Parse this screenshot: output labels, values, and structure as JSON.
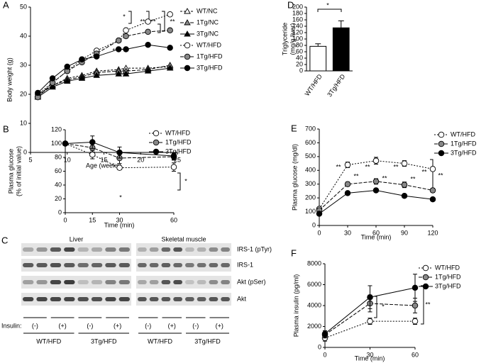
{
  "chart_data": [
    {
      "panel": "A",
      "type": "line",
      "xlabel": "Age (weeks)",
      "ylabel": [
        "Body weight (g)"
      ],
      "x": [
        6,
        8,
        10,
        12,
        14,
        17,
        18,
        21,
        24
      ],
      "xlim": [
        5,
        25
      ],
      "xticks": [
        5,
        10,
        15,
        20,
        25
      ],
      "ylim": [
        0,
        50
      ],
      "yticks": [
        0,
        10,
        20,
        30,
        40,
        50
      ],
      "series": [
        {
          "name": "WT/NC",
          "color": "#ffffff",
          "marker": "triangle",
          "dash": "3,2",
          "values": [
            20,
            23,
            25.5,
            26.5,
            28,
            28.5,
            29,
            29,
            29.5
          ]
        },
        {
          "name": "1Tg/NC",
          "color": "#888888",
          "marker": "triangle",
          "dash": "5,2",
          "values": [
            19.5,
            23,
            25,
            26,
            27.5,
            28,
            28,
            28.5,
            30
          ]
        },
        {
          "name": "3Tg/NC",
          "color": "#000000",
          "marker": "triangle",
          "dash": "",
          "values": [
            19,
            22.5,
            24.5,
            25.5,
            26.5,
            27,
            27,
            28,
            29
          ]
        },
        {
          "name": "WT/HFD",
          "color": "#ffffff",
          "marker": "circle",
          "dash": "2,2",
          "values": [
            20,
            24,
            28,
            32,
            35,
            38.5,
            42,
            45,
            47.5
          ]
        },
        {
          "name": "1Tg/HFD",
          "color": "#888888",
          "marker": "circle",
          "dash": "5,2",
          "values": [
            19,
            24,
            28,
            31,
            34,
            38.5,
            40,
            41.5,
            42
          ]
        },
        {
          "name": "3Tg/HFD",
          "color": "#000000",
          "marker": "circle",
          "dash": "",
          "values": [
            20.5,
            25.5,
            29.5,
            32,
            33,
            35.5,
            35.5,
            37,
            36
          ]
        }
      ],
      "annotations": [
        "*",
        "**",
        "**",
        "**",
        "**"
      ]
    },
    {
      "panel": "B",
      "type": "line",
      "xlabel": "Time (min)",
      "ylabel": [
        "Plasma glucose",
        "(% of initial value)"
      ],
      "x": [
        0,
        15,
        30,
        60
      ],
      "xlim": [
        0,
        60
      ],
      "xticks": [
        0,
        15,
        30,
        60
      ],
      "ylim": [
        0,
        120
      ],
      "yticks": [
        0,
        20,
        40,
        60,
        80,
        100,
        120
      ],
      "series": [
        {
          "name": "WT/HFD",
          "color": "#ffffff",
          "marker": "circle",
          "dash": "2,2",
          "values": [
            100,
            84,
            65,
            66
          ],
          "errors": [
            0,
            6,
            3,
            6
          ]
        },
        {
          "name": "1Tg/HFD",
          "color": "#888888",
          "marker": "circle",
          "dash": "5,2",
          "values": [
            100,
            94,
            79,
            81
          ],
          "errors": [
            0,
            6,
            8,
            5
          ]
        },
        {
          "name": "3Tg/HFD",
          "color": "#000000",
          "marker": "circle",
          "dash": "",
          "values": [
            100,
            102,
            87,
            82
          ],
          "errors": [
            0,
            9,
            8,
            5
          ]
        }
      ],
      "annotations": [
        "*",
        "*"
      ]
    },
    {
      "panel": "D",
      "type": "bar",
      "ylabel": [
        "Triglyceride",
        "(mg/g liver)"
      ],
      "categories": [
        "WT/HFD",
        "3Tg/HFD"
      ],
      "values": [
        77,
        135
      ],
      "errors": [
        8,
        22
      ],
      "colors": [
        "#ffffff",
        "#000000"
      ],
      "ylim": [
        0,
        200
      ],
      "yticks": [
        0,
        20,
        40,
        60,
        80,
        100,
        120,
        140,
        160,
        180,
        200
      ],
      "annotations": [
        "*"
      ]
    },
    {
      "panel": "E",
      "type": "line",
      "xlabel": "Time (min)",
      "ylabel": [
        "Plasma glucose (mg/dl)"
      ],
      "x": [
        0,
        30,
        60,
        90,
        120
      ],
      "xlim": [
        0,
        120
      ],
      "xticks": [
        0,
        30,
        60,
        90,
        120
      ],
      "ylim": [
        0,
        700
      ],
      "yticks": [
        0,
        100,
        200,
        300,
        400,
        500,
        600,
        700
      ],
      "series": [
        {
          "name": "WT/HFD",
          "color": "#ffffff",
          "marker": "circle",
          "dash": "2,2",
          "values": [
            120,
            440,
            470,
            450,
            410
          ],
          "errors": [
            10,
            20,
            25,
            20,
            15
          ]
        },
        {
          "name": "1Tg/HFD",
          "color": "#888888",
          "marker": "circle",
          "dash": "5,2",
          "values": [
            110,
            300,
            320,
            295,
            255
          ],
          "errors": [
            10,
            15,
            20,
            20,
            15
          ]
        },
        {
          "name": "3Tg/HFD",
          "color": "#000000",
          "marker": "circle",
          "dash": "",
          "values": [
            85,
            235,
            255,
            215,
            190
          ],
          "errors": [
            8,
            10,
            10,
            10,
            10
          ]
        }
      ],
      "annotations": [
        "**",
        "**",
        "**",
        "**",
        "**",
        "**",
        "**",
        "**"
      ]
    },
    {
      "panel": "F",
      "type": "line",
      "xlabel": "Time (min)",
      "ylabel": [
        "Plasma insulin (pg/ml)"
      ],
      "x": [
        0,
        30,
        60
      ],
      "xlim": [
        0,
        60
      ],
      "xticks": [
        0,
        30,
        60
      ],
      "ylim": [
        0,
        8000
      ],
      "yticks": [
        0,
        2000,
        4000,
        6000,
        8000
      ],
      "series": [
        {
          "name": "WT/HFD",
          "color": "#ffffff",
          "marker": "circle",
          "dash": "2,2",
          "values": [
            900,
            2500,
            2500
          ],
          "errors": [
            300,
            300,
            300
          ]
        },
        {
          "name": "1Tg/HFD",
          "color": "#888888",
          "marker": "circle",
          "dash": "5,2",
          "values": [
            1200,
            4200,
            4000
          ],
          "errors": [
            300,
            800,
            700
          ]
        },
        {
          "name": "3Tg/HFD",
          "color": "#000000",
          "marker": "circle",
          "dash": "",
          "values": [
            1300,
            4800,
            5700
          ],
          "errors": [
            300,
            1100,
            1300
          ]
        }
      ],
      "annotations": [
        "*",
        "**"
      ]
    }
  ],
  "blot": {
    "panel": "C",
    "groups": [
      "Liver",
      "Skeletal muscle"
    ],
    "rows": [
      "IRS-1 (pTyr)",
      "IRS-1",
      "Akt (pSer)",
      "Akt"
    ],
    "insulin_label": "Insulin:",
    "treatments": [
      "(-)",
      "(+)"
    ],
    "genotypes": [
      "WT/HFD",
      "3Tg/HFD"
    ]
  }
}
